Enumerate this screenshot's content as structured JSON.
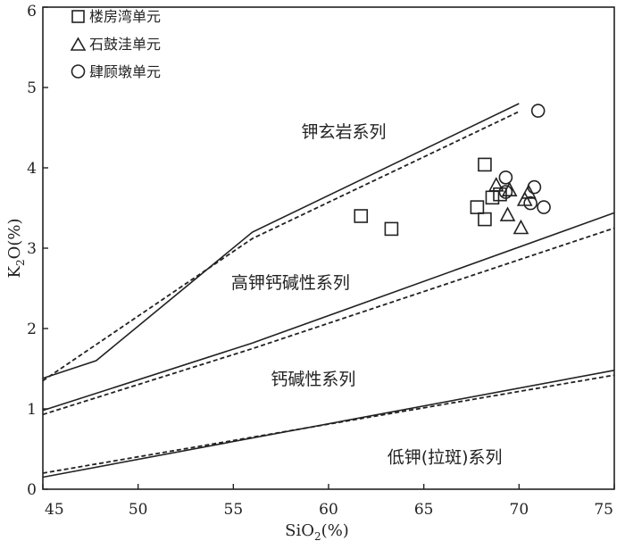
{
  "chart_data": {
    "type": "scatter",
    "xlabel": "SiO",
    "xlabel_sub": "2",
    "xlabel_unit": "(%)",
    "ylabel": "K",
    "ylabel_sub": "2",
    "ylabel_mid": "O",
    "ylabel_unit": "(%)",
    "xlim": [
      45,
      75
    ],
    "ylim": [
      0,
      6
    ],
    "x_ticks": [
      45,
      50,
      55,
      60,
      65,
      70,
      75
    ],
    "y_ticks": [
      0,
      1,
      2,
      3,
      4,
      5,
      6
    ],
    "grid": false,
    "legend_position": "top-left",
    "series": [
      {
        "name": "楼房湾单元",
        "marker": "square",
        "points": [
          [
            61.7,
            3.4
          ],
          [
            63.3,
            3.24
          ],
          [
            67.8,
            3.51
          ],
          [
            68.2,
            3.36
          ],
          [
            68.2,
            4.04
          ],
          [
            68.6,
            3.63
          ],
          [
            69.0,
            3.67
          ]
        ]
      },
      {
        "name": "石鼓洼单元",
        "marker": "triangle",
        "points": [
          [
            68.8,
            3.78
          ],
          [
            69.4,
            3.41
          ],
          [
            69.5,
            3.72
          ],
          [
            70.1,
            3.25
          ],
          [
            70.3,
            3.6
          ],
          [
            70.5,
            3.69
          ]
        ]
      },
      {
        "name": "肆顾墩单元",
        "marker": "circle",
        "points": [
          [
            69.3,
            3.88
          ],
          [
            69.3,
            3.7
          ],
          [
            70.6,
            3.56
          ],
          [
            70.8,
            3.76
          ],
          [
            71.0,
            4.71
          ],
          [
            71.3,
            3.51
          ]
        ]
      }
    ],
    "boundaries_solid": [
      [
        [
          45,
          1.38
        ],
        [
          47.8,
          1.6
        ],
        [
          56,
          3.2
        ],
        [
          70,
          4.8
        ]
      ],
      [
        [
          45,
          0.98
        ],
        [
          56,
          1.82
        ],
        [
          75,
          3.44
        ]
      ],
      [
        [
          45,
          0.15
        ],
        [
          75,
          1.48
        ]
      ]
    ],
    "boundaries_dashed": [
      [
        [
          45,
          1.35
        ],
        [
          56,
          3.12
        ],
        [
          70,
          4.7
        ]
      ],
      [
        [
          45,
          0.93
        ],
        [
          56,
          1.75
        ],
        [
          75,
          3.25
        ]
      ],
      [
        [
          45,
          0.2
        ],
        [
          75,
          1.42
        ]
      ]
    ],
    "field_labels": [
      {
        "text": "钾玄岩系列",
        "x": 60.8,
        "y": 4.38
      },
      {
        "text": "高钾钙碱性系列",
        "x": 58.0,
        "y": 2.5
      },
      {
        "text": "钙碱性系列",
        "x": 59.2,
        "y": 1.3
      },
      {
        "text": "低钾(拉斑)系列",
        "x": 66.1,
        "y": 0.33
      }
    ]
  }
}
